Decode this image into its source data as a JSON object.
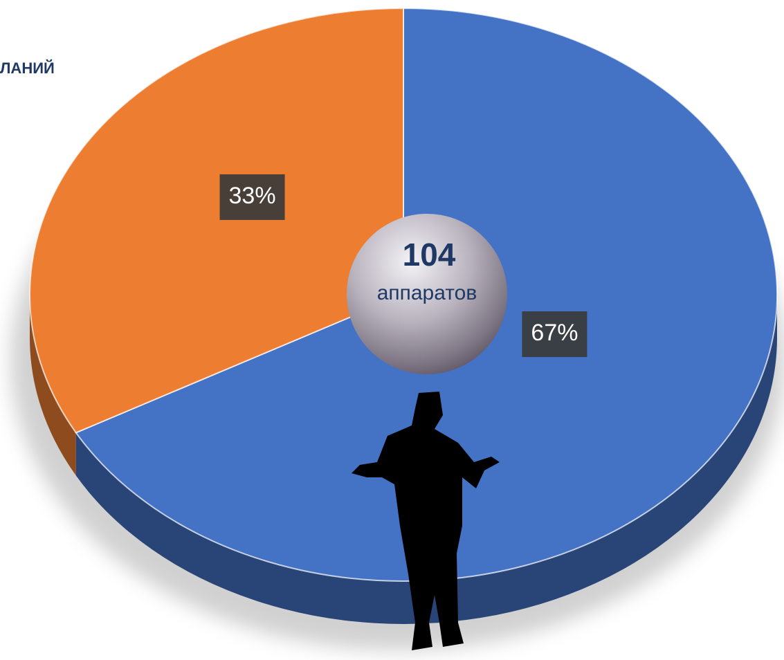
{
  "chart_data": {
    "type": "pie",
    "title": "ЛАНИЙ",
    "values": [
      67,
      33
    ],
    "value_labels": [
      "67%",
      "33%"
    ],
    "colors": [
      "#4472c4",
      "#ed7d31"
    ],
    "center_value": 104,
    "center_label": "аппаратов"
  }
}
